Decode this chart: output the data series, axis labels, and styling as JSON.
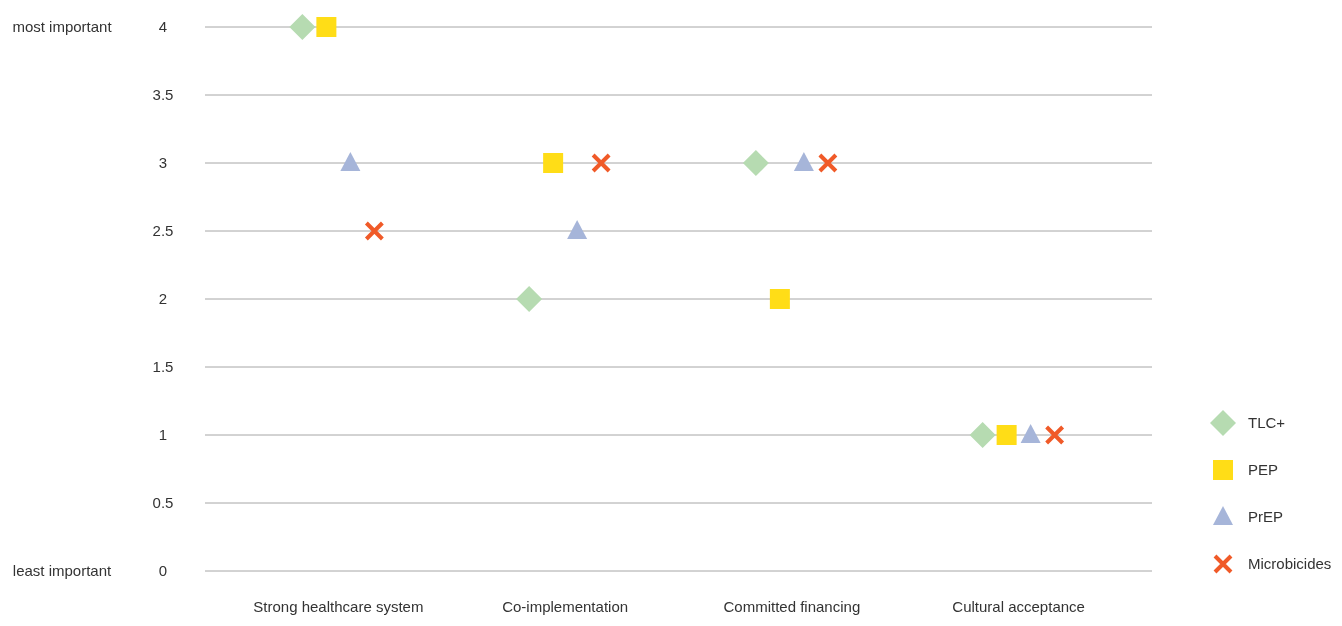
{
  "chart_data": {
    "type": "scatter",
    "categories": [
      "Strong healthcare system",
      "Co-implementation",
      "Committed  financing",
      "Cultural acceptance"
    ],
    "series": [
      {
        "name": "TLC+",
        "color": "#b6dbb1",
        "marker": "diamond",
        "values": [
          4,
          2,
          3,
          1
        ]
      },
      {
        "name": "PEP",
        "color": "#ffdd17",
        "marker": "square",
        "values": [
          4,
          3,
          2,
          1
        ]
      },
      {
        "name": "PrEP",
        "color": "#a6b5d9",
        "marker": "triangle",
        "values": [
          3,
          2.5,
          3,
          1
        ]
      },
      {
        "name": "Microbicides",
        "color": "#f05a28",
        "marker": "cross",
        "values": [
          2.5,
          3,
          3,
          1
        ]
      }
    ],
    "ylim": [
      0,
      4
    ],
    "yticks": [
      0,
      0.5,
      1,
      1.5,
      2,
      2.5,
      3,
      3.5,
      4
    ],
    "grid": "y",
    "legend": "right",
    "annotations": [
      "most important",
      "least important"
    ]
  }
}
